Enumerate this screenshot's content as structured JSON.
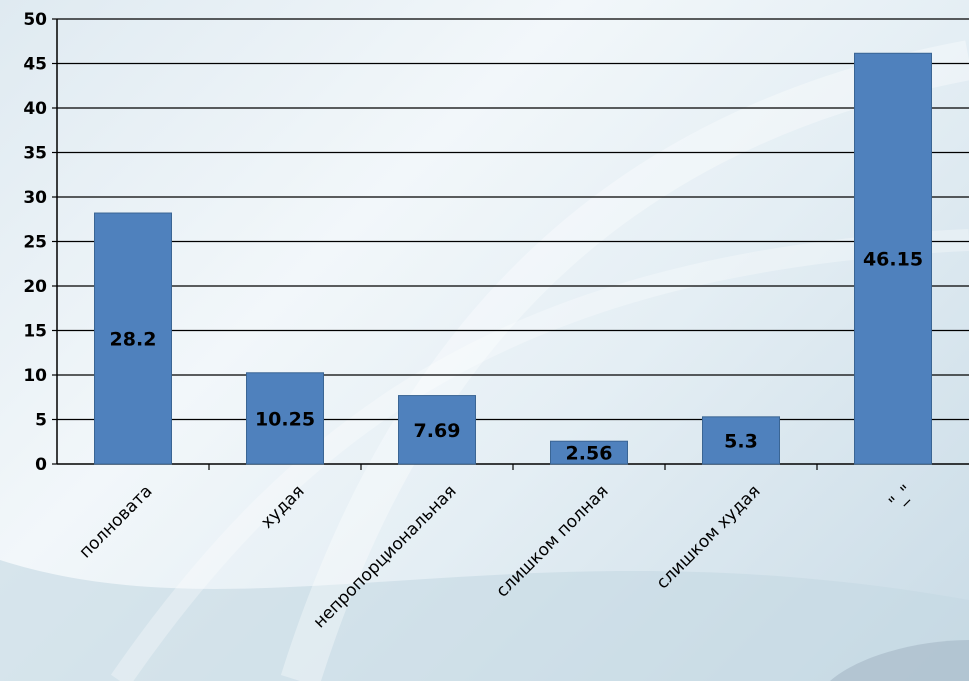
{
  "chart_data": {
    "type": "bar",
    "categories": [
      "полновата",
      "худая",
      "непропорциональная",
      "слишком полная",
      "слишком худая",
      "\"_\""
    ],
    "values": [
      28.2,
      10.25,
      7.69,
      2.56,
      5.3,
      46.15
    ],
    "data_labels": [
      "28.2",
      "10.25",
      "7.69",
      "2.56",
      "5.3",
      "46.15"
    ],
    "title": "",
    "xlabel": "",
    "ylabel": "",
    "ylim": [
      0,
      50
    ],
    "yticks": [
      0,
      5,
      10,
      15,
      20,
      25,
      30,
      35,
      40,
      45,
      50
    ],
    "grid": true,
    "legend": "none",
    "bar_color": "#4f81bd"
  }
}
